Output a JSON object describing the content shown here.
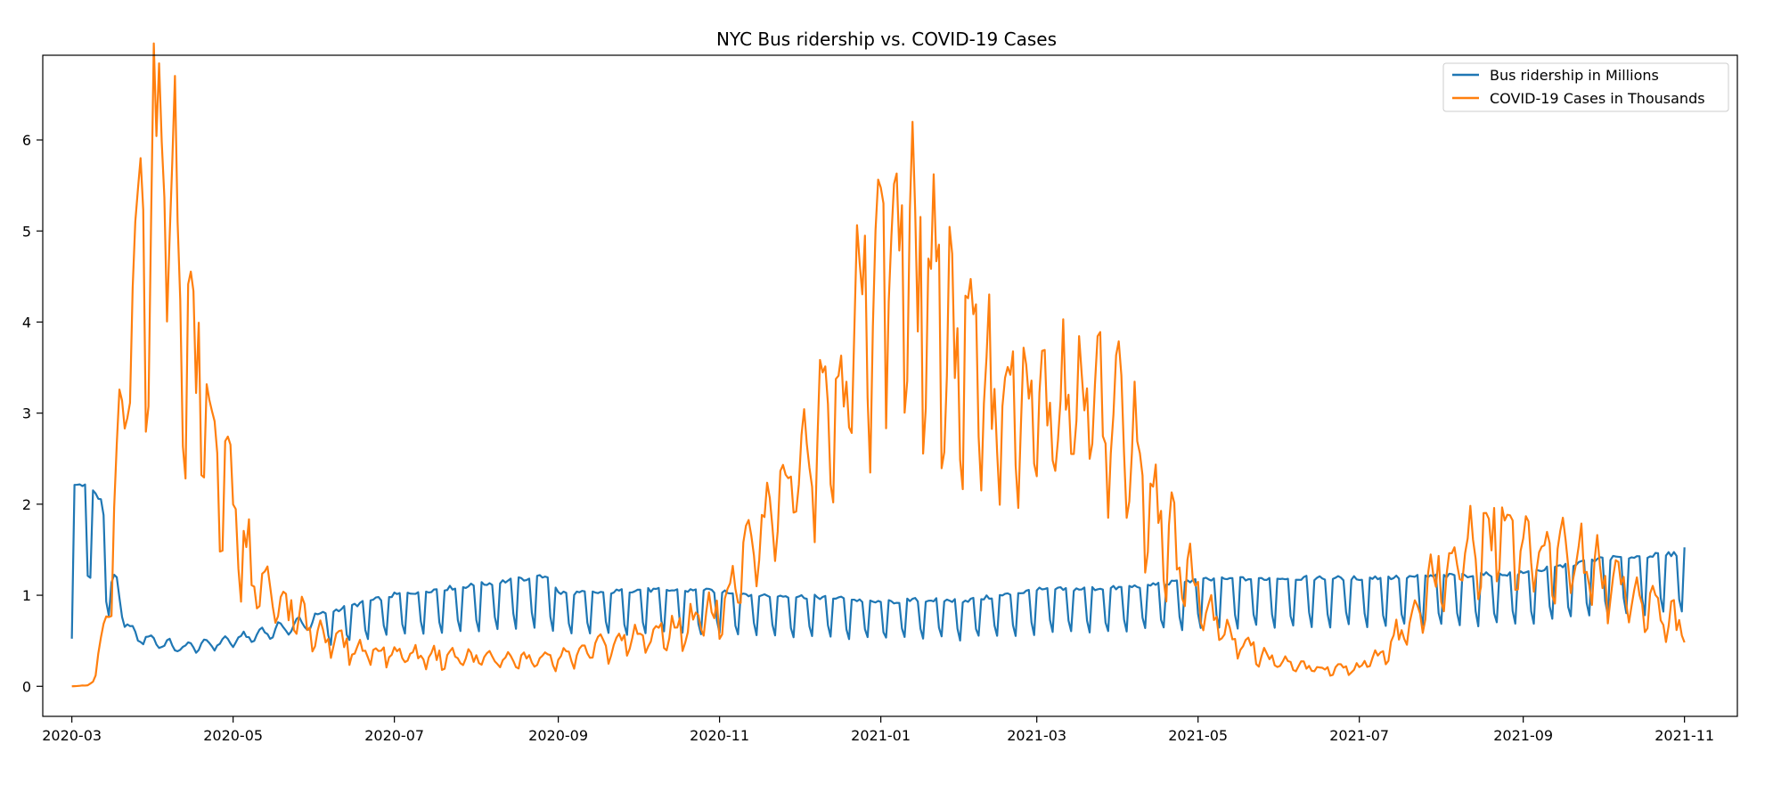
{
  "chart_data": {
    "type": "line",
    "title": "NYC Bus ridership vs. COVID-19 Cases",
    "xlabel": "",
    "ylabel": "",
    "x_range": [
      "2020-02-19",
      "2021-11-21"
    ],
    "ylim": [
      -0.33,
      6.93
    ],
    "grid": false,
    "legend_position": "top-right",
    "x_ticks": [
      "2020-03",
      "2020-05",
      "2020-07",
      "2020-09",
      "2020-11",
      "2021-01",
      "2021-03",
      "2021-05",
      "2021-07",
      "2021-09",
      "2021-11"
    ],
    "y_ticks": [
      0,
      1,
      2,
      3,
      4,
      5,
      6
    ],
    "series": [
      {
        "name": "Bus ridership in Millions",
        "color": "#1f77b4",
        "keypoints": [
          [
            "2020-03-01",
            0.98
          ],
          [
            "2020-03-02",
            2.2
          ],
          [
            "2020-03-04",
            2.22
          ],
          [
            "2020-03-06",
            2.2
          ],
          [
            "2020-03-09",
            2.15
          ],
          [
            "2020-03-12",
            2.05
          ],
          [
            "2020-03-14",
            1.7
          ],
          [
            "2020-03-16",
            1.05
          ],
          [
            "2020-03-18",
            1.15
          ],
          [
            "2020-03-21",
            0.7
          ],
          [
            "2020-03-25",
            0.55
          ],
          [
            "2020-04-01",
            0.5
          ],
          [
            "2020-04-10",
            0.42
          ],
          [
            "2020-04-20",
            0.45
          ],
          [
            "2020-05-01",
            0.5
          ],
          [
            "2020-05-15",
            0.6
          ],
          [
            "2020-06-01",
            0.72
          ],
          [
            "2020-06-15",
            0.82
          ],
          [
            "2020-07-01",
            0.93
          ],
          [
            "2020-07-15",
            0.98
          ],
          [
            "2020-08-01",
            1.03
          ],
          [
            "2020-08-15",
            1.08
          ],
          [
            "2020-08-28",
            1.12
          ],
          [
            "2020-09-01",
            0.95
          ],
          [
            "2020-09-15",
            0.95
          ],
          [
            "2020-10-01",
            0.98
          ],
          [
            "2020-11-01",
            0.97
          ],
          [
            "2020-11-15",
            0.93
          ],
          [
            "2020-12-15",
            0.9
          ],
          [
            "2021-01-01",
            0.85
          ],
          [
            "2021-01-15",
            0.88
          ],
          [
            "2021-02-01",
            0.87
          ],
          [
            "2021-02-15",
            0.92
          ],
          [
            "2021-03-01",
            0.98
          ],
          [
            "2021-04-01",
            1.0
          ],
          [
            "2021-05-01",
            1.08
          ],
          [
            "2021-06-01",
            1.1
          ],
          [
            "2021-07-01",
            1.1
          ],
          [
            "2021-08-01",
            1.12
          ],
          [
            "2021-09-01",
            1.15
          ],
          [
            "2021-09-15",
            1.22
          ],
          [
            "2021-10-01",
            1.3
          ],
          [
            "2021-10-31",
            1.35
          ],
          [
            "2021-11-01",
            1.42
          ]
        ]
      },
      {
        "name": "COVID-19 Cases in Thousands",
        "color": "#ff7f0e",
        "keypoints": [
          [
            "2020-03-01",
            0.0
          ],
          [
            "2020-03-07",
            0.01
          ],
          [
            "2020-03-10",
            0.1
          ],
          [
            "2020-03-13",
            0.6
          ],
          [
            "2020-03-16",
            1.1
          ],
          [
            "2020-03-18",
            2.2
          ],
          [
            "2020-03-21",
            3.0
          ],
          [
            "2020-03-24",
            4.0
          ],
          [
            "2020-03-27",
            4.9
          ],
          [
            "2020-03-30",
            5.1
          ],
          [
            "2020-04-01",
            5.5
          ],
          [
            "2020-04-03",
            5.7
          ],
          [
            "2020-04-05",
            6.0
          ],
          [
            "2020-04-07",
            5.6
          ],
          [
            "2020-04-10",
            4.6
          ],
          [
            "2020-04-14",
            3.8
          ],
          [
            "2020-04-18",
            3.3
          ],
          [
            "2020-04-22",
            2.8
          ],
          [
            "2020-04-28",
            2.2
          ],
          [
            "2020-05-03",
            1.6
          ],
          [
            "2020-05-10",
            1.1
          ],
          [
            "2020-05-20",
            0.85
          ],
          [
            "2020-06-01",
            0.6
          ],
          [
            "2020-06-15",
            0.4
          ],
          [
            "2020-07-01",
            0.35
          ],
          [
            "2020-08-01",
            0.3
          ],
          [
            "2020-08-20",
            0.28
          ],
          [
            "2020-09-01",
            0.3
          ],
          [
            "2020-09-15",
            0.4
          ],
          [
            "2020-10-01",
            0.5
          ],
          [
            "2020-10-15",
            0.6
          ],
          [
            "2020-11-01",
            0.8
          ],
          [
            "2020-11-10",
            1.3
          ],
          [
            "2020-11-20",
            1.8
          ],
          [
            "2020-12-01",
            2.5
          ],
          [
            "2020-12-10",
            3.0
          ],
          [
            "2020-12-20",
            3.4
          ],
          [
            "2020-12-28",
            4.3
          ],
          [
            "2021-01-03",
            4.9
          ],
          [
            "2021-01-10",
            4.6
          ],
          [
            "2021-01-20",
            4.1
          ],
          [
            "2021-02-01",
            3.6
          ],
          [
            "2021-02-15",
            3.1
          ],
          [
            "2021-03-01",
            2.9
          ],
          [
            "2021-03-15",
            2.95
          ],
          [
            "2021-03-25",
            3.05
          ],
          [
            "2021-04-01",
            2.9
          ],
          [
            "2021-04-10",
            2.3
          ],
          [
            "2021-04-20",
            1.6
          ],
          [
            "2021-05-01",
            1.0
          ],
          [
            "2021-05-15",
            0.5
          ],
          [
            "2021-06-01",
            0.25
          ],
          [
            "2021-06-20",
            0.17
          ],
          [
            "2021-07-01",
            0.2
          ],
          [
            "2021-07-10",
            0.35
          ],
          [
            "2021-07-20",
            0.7
          ],
          [
            "2021-08-01",
            1.3
          ],
          [
            "2021-08-15",
            1.6
          ],
          [
            "2021-08-25",
            1.65
          ],
          [
            "2021-09-05",
            1.45
          ],
          [
            "2021-09-20",
            1.35
          ],
          [
            "2021-10-01",
            1.2
          ],
          [
            "2021-10-15",
            0.95
          ],
          [
            "2021-10-25",
            0.75
          ],
          [
            "2021-11-01",
            0.65
          ]
        ]
      }
    ]
  }
}
